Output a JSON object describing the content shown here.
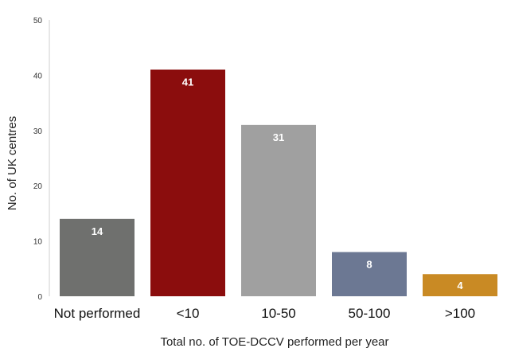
{
  "chart_data": {
    "type": "bar",
    "title": "",
    "xlabel": "Total no. of TOE-DCCV performed per year",
    "ylabel": "No. of UK centres",
    "categories": [
      "Not performed",
      "<10",
      "10-50",
      "50-100",
      ">100"
    ],
    "values": [
      14,
      41,
      31,
      8,
      4
    ],
    "data_labels": [
      "14",
      "41",
      "31",
      "8",
      "4"
    ],
    "colors": [
      "#6f706e",
      "#8b0d0d",
      "#a0a0a0",
      "#6c7893",
      "#c98a24"
    ],
    "ylim": [
      0,
      50
    ],
    "yticks": [
      0,
      10,
      20,
      30,
      40,
      50
    ],
    "ytick_labels": [
      "0",
      "10",
      "20",
      "30",
      "40",
      "50"
    ],
    "grid": false,
    "legend": "none"
  }
}
